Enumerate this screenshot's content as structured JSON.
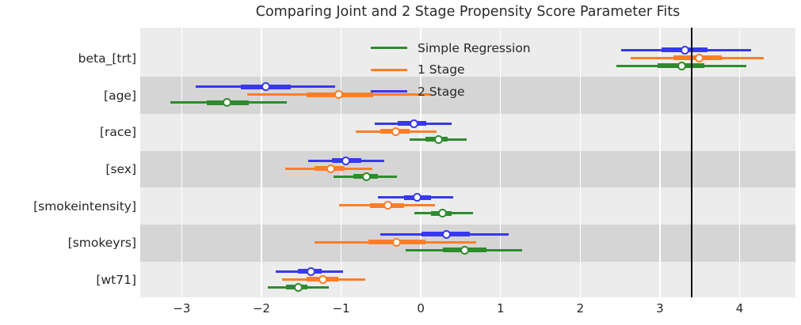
{
  "chart_data": {
    "type": "scatter",
    "subtype": "forest-plot-horizontal-intervals",
    "title": "Comparing Joint and 2 Stage Propensity Score Parameter Fits",
    "categories": [
      "beta_[trt]",
      "[age]",
      "[race]",
      "[sex]",
      "[smokeintensity]",
      "[smokeyrs]",
      "[wt71]"
    ],
    "x_ticks": [
      {
        "value": -3,
        "label": "−3"
      },
      {
        "value": -2,
        "label": "−2"
      },
      {
        "value": -1,
        "label": "−1"
      },
      {
        "value": 0,
        "label": "0"
      },
      {
        "value": 1,
        "label": "1"
      },
      {
        "value": 2,
        "label": "2"
      },
      {
        "value": 3,
        "label": "3"
      },
      {
        "value": 4,
        "label": "4"
      }
    ],
    "xlim": [
      -3.52,
      4.7
    ],
    "grid": "vertical white gridlines on gray bands",
    "legend_position": "inside upper-center-left",
    "reference_line": {
      "x": 3.4,
      "color": "#000000"
    },
    "series": [
      {
        "name": "Simple Regression",
        "color": "#2e8b2e",
        "estimates": [
          3.27,
          -2.43,
          0.22,
          -0.68,
          0.27,
          0.55,
          -1.54
        ],
        "ci_50": [
          [
            2.97,
            3.56
          ],
          [
            -2.69,
            -2.16
          ],
          [
            0.06,
            0.34
          ],
          [
            -0.85,
            -0.54
          ],
          [
            0.13,
            0.39
          ],
          [
            0.28,
            0.82
          ],
          [
            -1.69,
            -1.42
          ]
        ],
        "ci_95": [
          [
            2.45,
            4.08
          ],
          [
            -3.14,
            -1.68
          ],
          [
            -0.14,
            0.58
          ],
          [
            -1.09,
            -0.3
          ],
          [
            -0.08,
            0.65
          ],
          [
            -0.19,
            1.27
          ],
          [
            -1.92,
            -1.15
          ]
        ]
      },
      {
        "name": "1 Stage",
        "color": "#fd7e28",
        "estimates": [
          3.49,
          -1.03,
          -0.31,
          -1.13,
          -0.41,
          -0.3,
          -1.23
        ],
        "ci_50": [
          [
            3.17,
            3.78
          ],
          [
            -1.43,
            -0.6
          ],
          [
            -0.51,
            -0.14
          ],
          [
            -1.33,
            -0.96
          ],
          [
            -0.64,
            -0.21
          ],
          [
            -0.66,
            0.06
          ],
          [
            -1.43,
            -1.04
          ]
        ],
        "ci_95": [
          [
            2.63,
            4.3
          ],
          [
            -2.18,
            0.12
          ],
          [
            -0.82,
            0.2
          ],
          [
            -1.7,
            -0.61
          ],
          [
            -1.03,
            0.18
          ],
          [
            -1.33,
            0.69
          ],
          [
            -1.74,
            -0.7
          ]
        ]
      },
      {
        "name": "2 Stage",
        "color": "#3838ee",
        "estimates": [
          3.31,
          -1.94,
          -0.09,
          -0.94,
          -0.05,
          0.32,
          -1.38
        ],
        "ci_50": [
          [
            3.02,
            3.6
          ],
          [
            -2.26,
            -1.63
          ],
          [
            -0.29,
            0.07
          ],
          [
            -1.11,
            -0.75
          ],
          [
            -0.21,
            0.13
          ],
          [
            0.01,
            0.61
          ],
          [
            -1.54,
            -1.24
          ]
        ],
        "ci_95": [
          [
            2.51,
            4.14
          ],
          [
            -2.82,
            -1.07
          ],
          [
            -0.58,
            0.39
          ],
          [
            -1.41,
            -0.46
          ],
          [
            -0.54,
            0.41
          ],
          [
            -0.51,
            1.1
          ],
          [
            -1.82,
            -0.98
          ]
        ]
      }
    ],
    "style": {
      "band_light": "#ececec",
      "band_dark": "#d5d5d5",
      "gridline_color": "#ffffff",
      "text_color": "#262626",
      "dark_band_rows": [
        "[age]",
        "[sex]",
        "[smokeyrs]"
      ]
    }
  }
}
